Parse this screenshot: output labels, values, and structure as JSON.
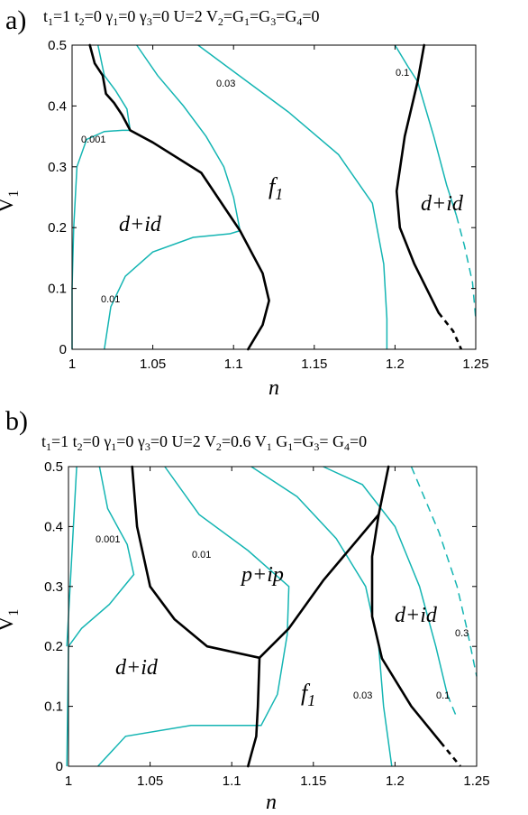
{
  "chart_data": [
    {
      "type": "line",
      "panel_label": "a)",
      "params": [
        "t1=1",
        "t2=0",
        "γ1=0",
        "γ3=0",
        "U=2",
        "V2=G1=G3=G4=0"
      ],
      "xlabel": "n",
      "ylabel": "V1",
      "xlim": [
        1,
        1.25
      ],
      "ylim": [
        0,
        0.5
      ],
      "x_ticks": [
        "1",
        "1.05",
        "1.1",
        "1.15",
        "1.2",
        "1.25"
      ],
      "y_ticks": [
        "0",
        "0.1",
        "0.2",
        "0.3",
        "0.4",
        "0.5"
      ],
      "grid": false,
      "region_labels": [
        "d+id",
        "f1",
        "d+id"
      ],
      "contour_labels": [
        "0.001",
        "0.01",
        "0.03",
        "0.1"
      ],
      "phase_boundaries": [
        {
          "name": "left boundary",
          "points": [
            [
              1.011,
              0.5
            ],
            [
              1.014,
              0.47
            ],
            [
              1.019,
              0.45
            ],
            [
              1.021,
              0.42
            ],
            [
              1.026,
              0.405
            ],
            [
              1.031,
              0.385
            ],
            [
              1.036,
              0.36
            ],
            [
              1.05,
              0.34
            ],
            [
              1.08,
              0.29
            ],
            [
              1.104,
              0.195
            ],
            [
              1.118,
              0.125
            ],
            [
              1.122,
              0.08
            ],
            [
              1.118,
              0.04
            ],
            [
              1.109,
              0.0
            ]
          ]
        },
        {
          "name": "right boundary",
          "points": [
            [
              1.218,
              0.5
            ],
            [
              1.214,
              0.44
            ],
            [
              1.206,
              0.35
            ],
            [
              1.201,
              0.26
            ],
            [
              1.203,
              0.2
            ],
            [
              1.212,
              0.14
            ],
            [
              1.227,
              0.06
            ]
          ]
        },
        {
          "name": "right boundary (dashed)",
          "dashed": true,
          "points": [
            [
              1.227,
              0.06
            ],
            [
              1.236,
              0.03
            ],
            [
              1.241,
              0.0
            ]
          ]
        }
      ],
      "contours": [
        {
          "label": "0.001",
          "points": [
            [
              1.0,
              0.0
            ],
            [
              1.0,
              0.1
            ],
            [
              1.001,
              0.2
            ],
            [
              1.003,
              0.3
            ],
            [
              1.009,
              0.345
            ],
            [
              1.02,
              0.358
            ],
            [
              1.031,
              0.36
            ],
            [
              1.036,
              0.36
            ]
          ]
        },
        {
          "label": "0.001",
          "points": [
            [
              1.016,
              0.5
            ],
            [
              1.02,
              0.45
            ],
            [
              1.027,
              0.425
            ],
            [
              1.034,
              0.395
            ],
            [
              1.036,
              0.36
            ]
          ]
        },
        {
          "label": "0.01",
          "points": [
            [
              1.02,
              0.0
            ],
            [
              1.024,
              0.07
            ],
            [
              1.033,
              0.12
            ],
            [
              1.05,
              0.16
            ],
            [
              1.075,
              0.184
            ],
            [
              1.098,
              0.19
            ],
            [
              1.104,
              0.195
            ]
          ]
        },
        {
          "label": "0.01",
          "points": [
            [
              1.04,
              0.5
            ],
            [
              1.053,
              0.45
            ],
            [
              1.069,
              0.4
            ],
            [
              1.083,
              0.35
            ],
            [
              1.094,
              0.3
            ],
            [
              1.1,
              0.25
            ],
            [
              1.104,
              0.195
            ]
          ]
        },
        {
          "label": "0.03",
          "points": [
            [
              1.078,
              0.5
            ],
            [
              1.106,
              0.445
            ],
            [
              1.134,
              0.39
            ],
            [
              1.165,
              0.32
            ],
            [
              1.186,
              0.24
            ],
            [
              1.193,
              0.14
            ],
            [
              1.195,
              0.05
            ],
            [
              1.195,
              0.0
            ]
          ]
        },
        {
          "label": "0.1",
          "points": [
            [
              1.2,
              0.5
            ],
            [
              1.208,
              0.465
            ],
            [
              1.214,
              0.44
            ],
            [
              1.224,
              0.35
            ],
            [
              1.232,
              0.27
            ],
            [
              1.238,
              0.22
            ]
          ]
        },
        {
          "label": "0.1",
          "dashed": true,
          "points": [
            [
              1.238,
              0.22
            ],
            [
              1.243,
              0.17
            ],
            [
              1.248,
              0.11
            ],
            [
              1.25,
              0.05
            ]
          ]
        }
      ]
    },
    {
      "type": "line",
      "panel_label": "b)",
      "params": [
        "t1=1",
        "t2=0",
        "γ1=0",
        "γ3=0",
        "U=2",
        "V2=0.6 V1",
        "G1=G3= G4=0"
      ],
      "xlabel": "n",
      "ylabel": "V1",
      "xlim": [
        1,
        1.25
      ],
      "ylim": [
        0,
        0.5
      ],
      "x_ticks": [
        "1",
        "1.05",
        "1.1",
        "1.15",
        "1.2",
        "1.25"
      ],
      "y_ticks": [
        "0",
        "0.1",
        "0.2",
        "0.3",
        "0.4",
        "0.5"
      ],
      "grid": false,
      "region_labels": [
        "p+ip",
        "d+id",
        "d+id",
        "f1"
      ],
      "contour_labels": [
        "0.001",
        "0.01",
        "0.03",
        "0.1",
        "0.3"
      ],
      "phase_boundaries": [
        {
          "name": "d+id / p+ip",
          "points": [
            [
              1.039,
              0.5
            ],
            [
              1.042,
              0.4
            ],
            [
              1.05,
              0.3
            ],
            [
              1.065,
              0.245
            ],
            [
              1.085,
              0.2
            ],
            [
              1.117,
              0.181
            ]
          ]
        },
        {
          "name": "f1 / d+id bottom",
          "points": [
            [
              1.117,
              0.181
            ],
            [
              1.116,
              0.1
            ],
            [
              1.115,
              0.05
            ],
            [
              1.112,
              0.02
            ],
            [
              1.11,
              0.0
            ]
          ]
        },
        {
          "name": "p+ip / f1",
          "points": [
            [
              1.117,
              0.181
            ],
            [
              1.135,
              0.23
            ],
            [
              1.156,
              0.31
            ],
            [
              1.19,
              0.42
            ]
          ]
        },
        {
          "name": "vertical right",
          "points": [
            [
              1.19,
              0.42
            ],
            [
              1.196,
              0.5
            ]
          ]
        },
        {
          "name": "right branch",
          "points": [
            [
              1.19,
              0.42
            ],
            [
              1.186,
              0.35
            ],
            [
              1.186,
              0.25
            ],
            [
              1.192,
              0.18
            ],
            [
              1.21,
              0.1
            ],
            [
              1.228,
              0.04
            ]
          ]
        },
        {
          "name": "right branch (dashed)",
          "dashed": true,
          "points": [
            [
              1.228,
              0.04
            ],
            [
              1.24,
              0.0
            ]
          ]
        }
      ],
      "contours": [
        {
          "label": "0.001",
          "points": [
            [
              0.999,
              0.2
            ],
            [
              1.0,
              0.25
            ],
            [
              1.005,
              0.5
            ]
          ]
        },
        {
          "label": "0.001",
          "points": [
            [
              0.999,
              0.0
            ],
            [
              1.0,
              0.2
            ],
            [
              1.008,
              0.23
            ],
            [
              1.025,
              0.27
            ],
            [
              1.04,
              0.32
            ],
            [
              1.036,
              0.37
            ],
            [
              1.024,
              0.43
            ],
            [
              1.019,
              0.5
            ]
          ]
        },
        {
          "label": "0.01",
          "points": [
            [
              1.018,
              0.0
            ],
            [
              1.035,
              0.05
            ],
            [
              1.075,
              0.068
            ],
            [
              1.118,
              0.068
            ],
            [
              1.128,
              0.12
            ],
            [
              1.134,
              0.22
            ]
          ]
        },
        {
          "label": "0.01",
          "points": [
            [
              1.059,
              0.5
            ],
            [
              1.08,
              0.42
            ],
            [
              1.11,
              0.36
            ],
            [
              1.135,
              0.3
            ],
            [
              1.134,
              0.22
            ]
          ]
        },
        {
          "label": "0.03",
          "points": [
            [
              1.112,
              0.5
            ],
            [
              1.14,
              0.45
            ],
            [
              1.164,
              0.38
            ],
            [
              1.182,
              0.3
            ],
            [
              1.19,
              0.2
            ],
            [
              1.193,
              0.1
            ],
            [
              1.198,
              0.0
            ]
          ]
        },
        {
          "label": "0.1",
          "points": [
            [
              1.156,
              0.5
            ],
            [
              1.18,
              0.47
            ],
            [
              1.2,
              0.4
            ],
            [
              1.215,
              0.3
            ],
            [
              1.225,
              0.2
            ],
            [
              1.232,
              0.12
            ]
          ]
        },
        {
          "label": "0.1",
          "dashed": true,
          "points": [
            [
              1.232,
              0.12
            ],
            [
              1.238,
              0.08
            ]
          ]
        },
        {
          "label": "0.3",
          "dashed": true,
          "points": [
            [
              1.21,
              0.5
            ],
            [
              1.227,
              0.39
            ],
            [
              1.238,
              0.3
            ],
            [
              1.244,
              0.23
            ],
            [
              1.25,
              0.15
            ]
          ]
        }
      ]
    }
  ]
}
